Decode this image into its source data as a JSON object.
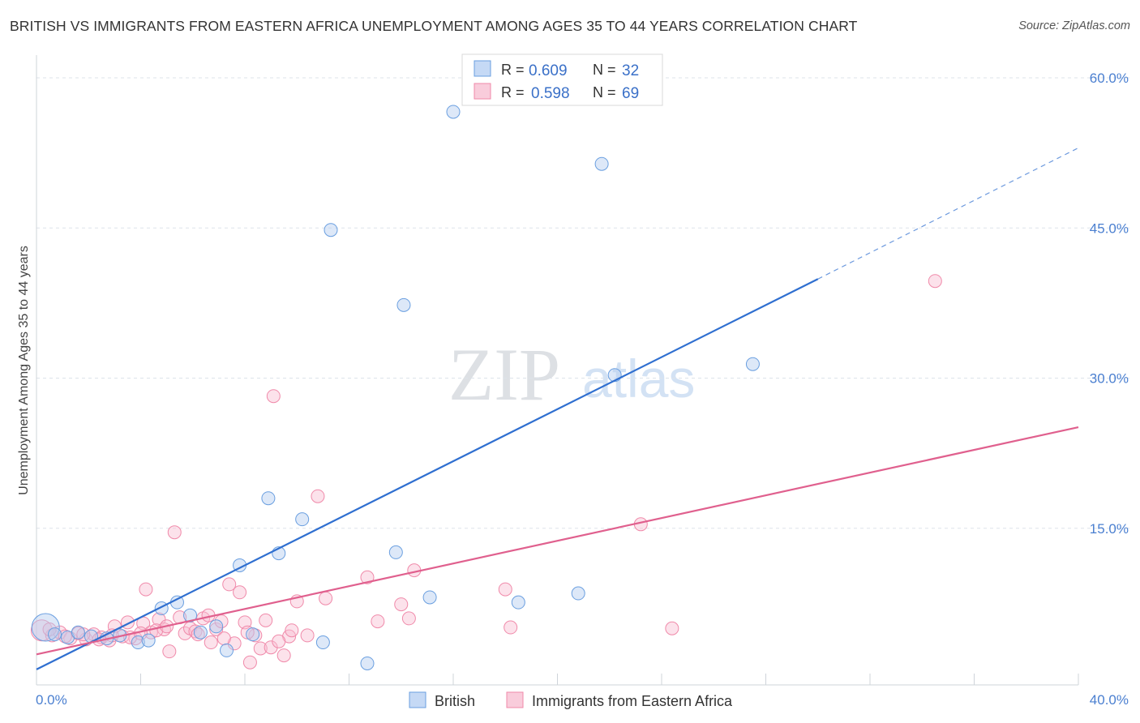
{
  "header": {
    "title": "BRITISH VS IMMIGRANTS FROM EASTERN AFRICA UNEMPLOYMENT AMONG AGES 35 TO 44 YEARS CORRELATION CHART",
    "source": "Source: ZipAtlas.com"
  },
  "watermark": {
    "zip": "ZIP",
    "atlas": "atlas"
  },
  "colors": {
    "british": "#6a9fe0",
    "british_line": "#2f6fd0",
    "immigrants": "#f08aaa",
    "immigrants_line": "#e0608e",
    "tick": "#4a7fd0",
    "grid": "#dde3ea"
  },
  "legend_stats": [
    {
      "r_label": "R = ",
      "r_value": "0.609",
      "n_label": "N = ",
      "n_value": "32"
    },
    {
      "r_label": "R = ",
      "r_value": "0.598",
      "n_label": "N = ",
      "n_value": "69"
    }
  ],
  "bottom_legend": [
    "British",
    "Immigrants from Eastern Africa"
  ],
  "chart_data": {
    "type": "scatter",
    "title": "BRITISH VS IMMIGRANTS FROM EASTERN AFRICA UNEMPLOYMENT AMONG AGES 35 TO 44 YEARS CORRELATION CHART",
    "xlabel": "",
    "ylabel": "Unemployment Among Ages 35 to 44 years",
    "xlim": [
      0,
      40
    ],
    "ylim": [
      0,
      60
    ],
    "x_tick_labels": [
      "0.0%",
      "40.0%"
    ],
    "y_ticks": [
      15,
      30,
      45,
      60
    ],
    "y_tick_labels": [
      "15.0%",
      "30.0%",
      "45.0%",
      "60.0%"
    ],
    "grid": true,
    "legend_position": "top-center",
    "series": [
      {
        "name": "British",
        "r": 0.609,
        "n": 32,
        "trend": {
          "x0": 0,
          "y0": 0.9,
          "x1": 30,
          "y1": 39.9,
          "dashed_to_x": 40,
          "dashed_to_y": 53
        },
        "points": [
          {
            "x": 0.35,
            "y": 5.1,
            "size": "large"
          },
          {
            "x": 0.7,
            "y": 4.4
          },
          {
            "x": 1.2,
            "y": 4.1
          },
          {
            "x": 1.6,
            "y": 4.6
          },
          {
            "x": 2.1,
            "y": 4.2
          },
          {
            "x": 2.7,
            "y": 4.0
          },
          {
            "x": 3.2,
            "y": 4.3
          },
          {
            "x": 3.9,
            "y": 3.6
          },
          {
            "x": 4.3,
            "y": 3.8
          },
          {
            "x": 4.8,
            "y": 7.0
          },
          {
            "x": 5.4,
            "y": 7.6
          },
          {
            "x": 5.9,
            "y": 6.3
          },
          {
            "x": 6.3,
            "y": 4.6
          },
          {
            "x": 6.9,
            "y": 5.2
          },
          {
            "x": 7.3,
            "y": 2.8
          },
          {
            "x": 7.8,
            "y": 11.3
          },
          {
            "x": 8.3,
            "y": 4.4
          },
          {
            "x": 8.9,
            "y": 18.0
          },
          {
            "x": 9.3,
            "y": 12.5
          },
          {
            "x": 10.2,
            "y": 15.9
          },
          {
            "x": 11.0,
            "y": 3.6
          },
          {
            "x": 11.3,
            "y": 44.8
          },
          {
            "x": 12.7,
            "y": 1.5
          },
          {
            "x": 13.8,
            "y": 12.6
          },
          {
            "x": 14.1,
            "y": 37.3
          },
          {
            "x": 15.1,
            "y": 8.1
          },
          {
            "x": 16.0,
            "y": 56.6
          },
          {
            "x": 18.5,
            "y": 7.6
          },
          {
            "x": 20.8,
            "y": 8.5
          },
          {
            "x": 21.7,
            "y": 51.4
          },
          {
            "x": 22.2,
            "y": 30.3
          },
          {
            "x": 27.5,
            "y": 31.4
          }
        ]
      },
      {
        "name": "Immigrants from Eastern Africa",
        "r": 0.598,
        "n": 69,
        "trend": {
          "x0": 0,
          "y0": 2.4,
          "x1": 40,
          "y1": 25.1
        },
        "points": [
          {
            "x": 0.2,
            "y": 4.8,
            "size": "medium"
          },
          {
            "x": 0.6,
            "y": 4.3
          },
          {
            "x": 0.9,
            "y": 4.6
          },
          {
            "x": 1.3,
            "y": 4.0
          },
          {
            "x": 1.6,
            "y": 4.5
          },
          {
            "x": 1.9,
            "y": 3.9
          },
          {
            "x": 2.2,
            "y": 4.4
          },
          {
            "x": 2.5,
            "y": 4.1
          },
          {
            "x": 2.8,
            "y": 3.8
          },
          {
            "x": 3.0,
            "y": 5.2
          },
          {
            "x": 3.3,
            "y": 4.2
          },
          {
            "x": 3.5,
            "y": 5.6
          },
          {
            "x": 3.8,
            "y": 4.0
          },
          {
            "x": 4.1,
            "y": 5.5
          },
          {
            "x": 4.2,
            "y": 8.9
          },
          {
            "x": 4.4,
            "y": 4.6
          },
          {
            "x": 4.7,
            "y": 5.9
          },
          {
            "x": 4.9,
            "y": 4.9
          },
          {
            "x": 5.1,
            "y": 2.7
          },
          {
            "x": 5.3,
            "y": 14.6
          },
          {
            "x": 5.5,
            "y": 6.1
          },
          {
            "x": 5.7,
            "y": 4.5
          },
          {
            "x": 5.9,
            "y": 5.0
          },
          {
            "x": 6.1,
            "y": 4.7
          },
          {
            "x": 6.4,
            "y": 6.0
          },
          {
            "x": 6.7,
            "y": 3.6
          },
          {
            "x": 6.9,
            "y": 4.9
          },
          {
            "x": 7.1,
            "y": 5.7
          },
          {
            "x": 7.4,
            "y": 9.4
          },
          {
            "x": 7.6,
            "y": 3.5
          },
          {
            "x": 7.8,
            "y": 8.6
          },
          {
            "x": 8.0,
            "y": 5.6
          },
          {
            "x": 8.2,
            "y": 1.6
          },
          {
            "x": 8.4,
            "y": 4.3
          },
          {
            "x": 8.6,
            "y": 3.0
          },
          {
            "x": 8.8,
            "y": 5.8
          },
          {
            "x": 9.0,
            "y": 3.1
          },
          {
            "x": 9.1,
            "y": 28.2
          },
          {
            "x": 9.5,
            "y": 2.3
          },
          {
            "x": 9.7,
            "y": 4.2
          },
          {
            "x": 10.0,
            "y": 7.7
          },
          {
            "x": 10.4,
            "y": 4.3
          },
          {
            "x": 10.8,
            "y": 18.2
          },
          {
            "x": 11.1,
            "y": 8.0
          },
          {
            "x": 12.7,
            "y": 10.1
          },
          {
            "x": 13.1,
            "y": 5.7
          },
          {
            "x": 14.0,
            "y": 7.4
          },
          {
            "x": 14.3,
            "y": 6.0
          },
          {
            "x": 14.5,
            "y": 10.8
          },
          {
            "x": 18.0,
            "y": 8.9
          },
          {
            "x": 18.2,
            "y": 5.1
          },
          {
            "x": 23.2,
            "y": 15.4
          },
          {
            "x": 24.4,
            "y": 5.0
          },
          {
            "x": 34.5,
            "y": 39.7
          },
          {
            "x": 0.5,
            "y": 4.9
          },
          {
            "x": 1.1,
            "y": 4.2
          },
          {
            "x": 1.8,
            "y": 4.4
          },
          {
            "x": 2.4,
            "y": 3.9
          },
          {
            "x": 2.9,
            "y": 4.3
          },
          {
            "x": 3.6,
            "y": 4.1
          },
          {
            "x": 4.0,
            "y": 4.5
          },
          {
            "x": 4.6,
            "y": 4.8
          },
          {
            "x": 5.0,
            "y": 5.2
          },
          {
            "x": 6.2,
            "y": 4.4
          },
          {
            "x": 6.6,
            "y": 6.3
          },
          {
            "x": 7.2,
            "y": 4.0
          },
          {
            "x": 8.1,
            "y": 4.6
          },
          {
            "x": 9.3,
            "y": 3.7
          },
          {
            "x": 9.8,
            "y": 4.8
          }
        ]
      }
    ]
  }
}
